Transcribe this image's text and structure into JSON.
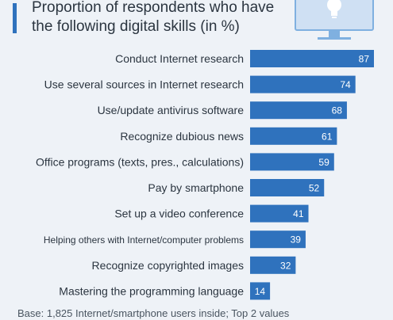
{
  "chart_data": {
    "type": "bar",
    "orientation": "horizontal",
    "title": "Proportion of respondents who have the following digital skills (in %)",
    "categories": [
      "Conduct Internet research",
      "Use several sources in Internet research",
      "Use/update antivirus software",
      "Recognize dubious news",
      "Office programs (texts, pres., calculations)",
      "Pay by smartphone",
      "Set up a video conference",
      "Helping others with Internet/computer problems",
      "Recognize copyrighted images",
      "Mastering the programming language"
    ],
    "values": [
      87,
      74,
      68,
      61,
      59,
      52,
      41,
      39,
      32,
      14
    ],
    "bar_color": "#2f72bd",
    "xlim": [
      0,
      90
    ],
    "grid": false,
    "legend": "none"
  },
  "footnote": "Base: 1,825 Internet/smartphone users inside; Top 2 values",
  "icon": "monitor-lightbulb-icon"
}
